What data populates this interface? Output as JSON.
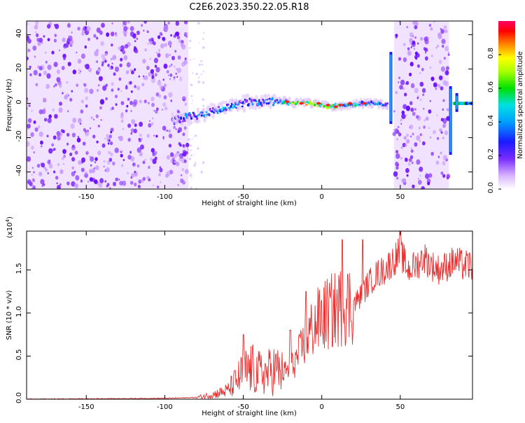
{
  "title": "C2E6.2023.350.22.05.R18",
  "colorbar": {
    "label": "Normalized spectral amplitude",
    "ticks": [
      {
        "value": 0.0,
        "label": "0.0"
      },
      {
        "value": 0.2,
        "label": "0.2"
      },
      {
        "value": 0.4,
        "label": "0.4"
      },
      {
        "value": 0.6,
        "label": "0.6"
      },
      {
        "value": 0.8,
        "label": "0.8"
      }
    ]
  },
  "colors": {
    "snr_line": "#e83030",
    "speckle": "#8a2be2"
  },
  "chart_data": [
    {
      "type": "heatmap",
      "xlabel": "Height of straight line (km)",
      "ylabel": "Frequency (Hz)",
      "xlim": [
        -188,
        96
      ],
      "ylim": [
        -50,
        48
      ],
      "x_ticks": [
        {
          "value": -150,
          "label": "-150"
        },
        {
          "value": -100,
          "label": "-100"
        },
        {
          "value": -50,
          "label": "-50"
        },
        {
          "value": 0,
          "label": "0"
        },
        {
          "value": 50,
          "label": "50"
        }
      ],
      "y_ticks": [
        {
          "value": -40,
          "label": "-40"
        },
        {
          "value": -20,
          "label": "-20"
        },
        {
          "value": 0,
          "label": "0"
        },
        {
          "value": 20,
          "label": "20"
        },
        {
          "value": 40,
          "label": "40"
        }
      ],
      "noise_regions": [
        [
          -188,
          -85
        ],
        [
          46,
          81
        ]
      ],
      "ridge": {
        "x": [
          -95,
          -85,
          -75,
          -65,
          -55,
          -45,
          -35,
          -25,
          -15,
          -5,
          5,
          15,
          25,
          35,
          42
        ],
        "freq": [
          -10,
          -8,
          -6,
          -3,
          -1,
          1,
          1,
          1,
          0,
          0,
          -2,
          -1,
          0,
          0,
          -1
        ],
        "amplitude": [
          0.2,
          0.3,
          0.35,
          0.4,
          0.35,
          0.3,
          0.35,
          0.45,
          0.75,
          0.7,
          0.6,
          0.55,
          0.4,
          0.4,
          0.3
        ]
      }
    },
    {
      "type": "line",
      "xlabel": "Height of straight line (km)",
      "ylabel": "SNR (10 * v/v)",
      "y_multiplier_label": "(x10",
      "y_multiplier_exp": "4",
      "y_multiplier_close": ")",
      "xlim": [
        -188,
        96
      ],
      "ylim": [
        0,
        1.95
      ],
      "x_ticks": [
        {
          "value": -150,
          "label": "-150"
        },
        {
          "value": -100,
          "label": "-100"
        },
        {
          "value": -50,
          "label": "-50"
        },
        {
          "value": 0,
          "label": "0"
        },
        {
          "value": 50,
          "label": "50"
        }
      ],
      "y_ticks": [
        {
          "value": 0.0,
          "label": "0.0"
        },
        {
          "value": 0.5,
          "label": "0.5"
        },
        {
          "value": 1.0,
          "label": "1.0"
        },
        {
          "value": 1.5,
          "label": "1.5"
        }
      ],
      "trend": {
        "x": [
          -188,
          -100,
          -80,
          -70,
          -60,
          -55,
          -50,
          -45,
          -40,
          -35,
          -30,
          -25,
          -20,
          -15,
          -10,
          -5,
          0,
          5,
          10,
          15,
          20,
          25,
          30,
          35,
          40,
          45,
          50,
          55,
          60,
          65,
          70,
          75,
          80,
          85,
          90,
          96
        ],
        "y": [
          0.0,
          0.01,
          0.02,
          0.05,
          0.1,
          0.2,
          0.3,
          0.35,
          0.3,
          0.3,
          0.35,
          0.3,
          0.35,
          0.5,
          0.7,
          0.85,
          0.95,
          1.0,
          1.05,
          1.1,
          1.1,
          1.2,
          1.35,
          1.45,
          1.5,
          1.6,
          1.7,
          1.5,
          1.55,
          1.65,
          1.55,
          1.5,
          1.55,
          1.6,
          1.55,
          1.55
        ]
      },
      "peaks": [
        {
          "x": -50,
          "y": 0.75
        },
        {
          "x": -20,
          "y": 0.8
        },
        {
          "x": -10,
          "y": 1.25
        },
        {
          "x": 13,
          "y": 1.85
        },
        {
          "x": 26,
          "y": 1.85
        },
        {
          "x": 50,
          "y": 1.95
        }
      ]
    }
  ]
}
